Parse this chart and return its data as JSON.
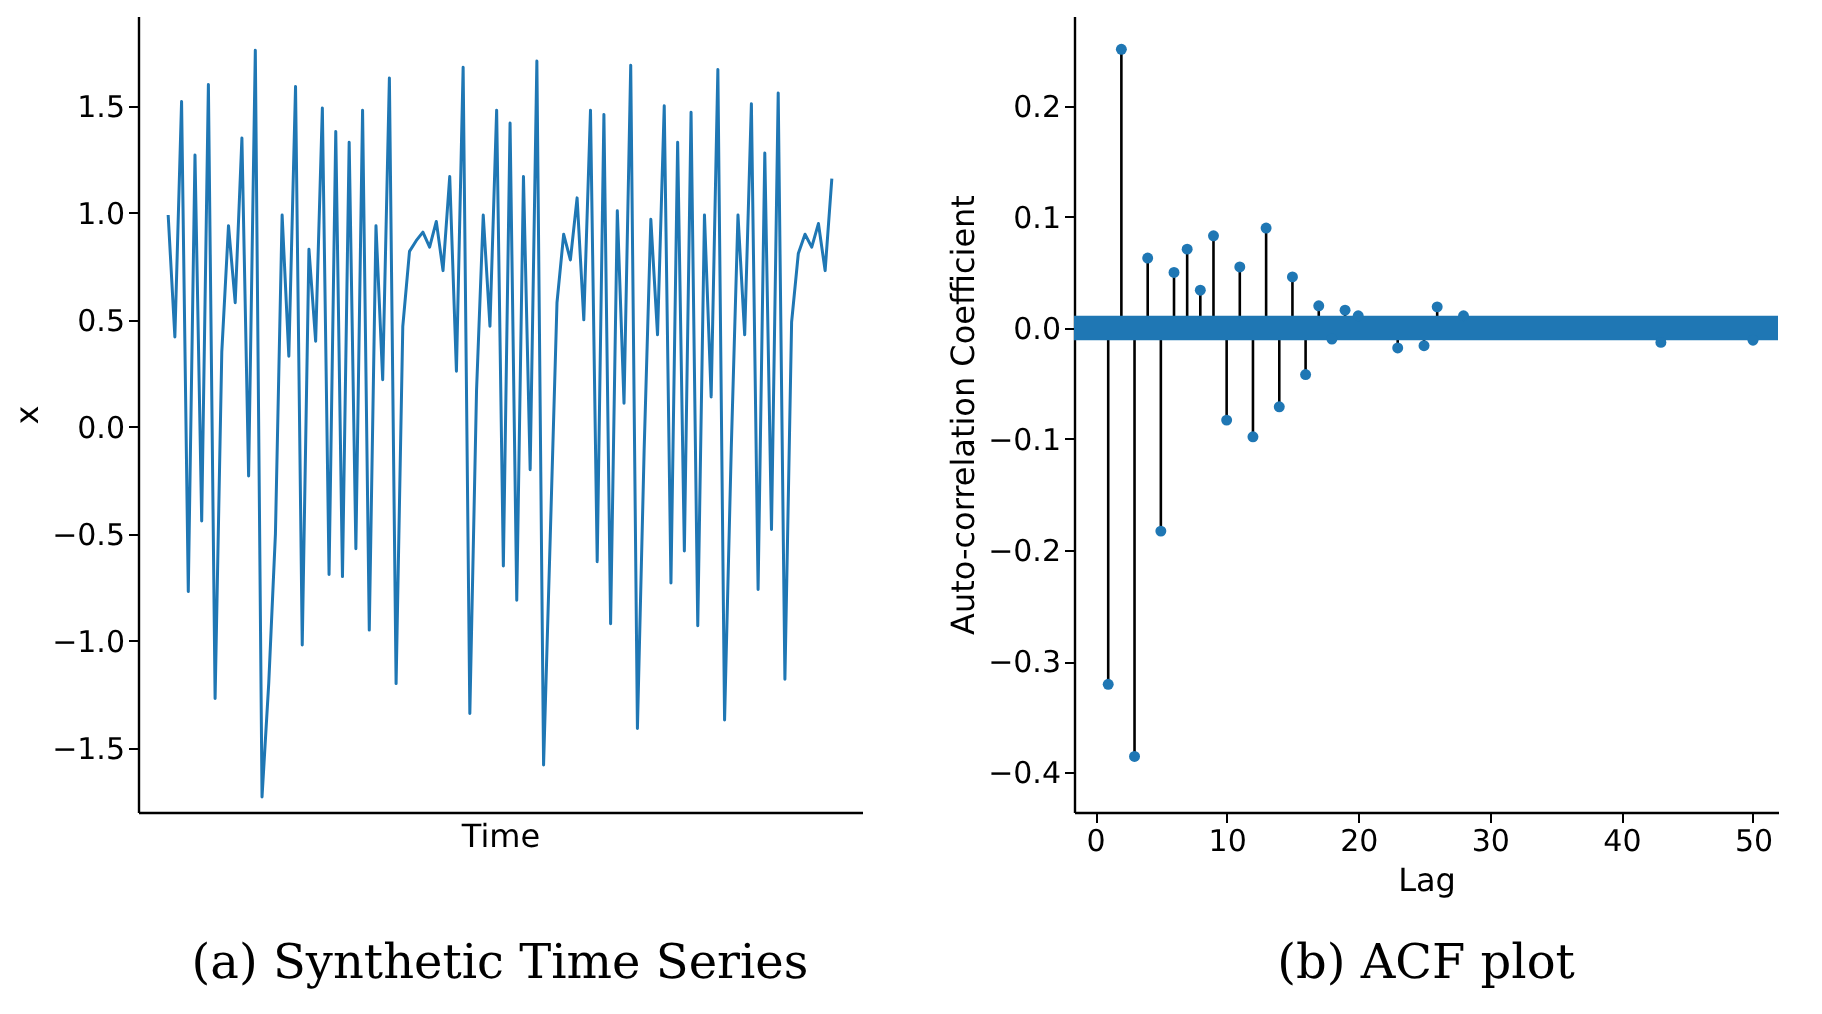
{
  "chart_data": [
    {
      "type": "line",
      "title": "(a) Synthetic Time Series",
      "xlabel": "Time",
      "ylabel": "x",
      "categories": [
        null,
        null,
        null,
        null,
        null,
        null,
        null,
        null,
        null,
        null,
        null,
        null,
        null,
        null,
        null,
        null,
        null,
        null,
        null,
        null,
        null,
        null,
        null,
        null,
        null,
        null,
        null,
        null,
        null,
        null,
        null,
        null,
        null,
        null,
        null,
        null,
        null,
        null,
        null,
        null,
        null,
        null,
        null,
        null,
        null,
        null,
        null,
        null,
        null,
        null,
        null,
        null,
        null,
        null,
        null,
        null,
        null,
        null,
        null,
        null,
        null,
        null,
        null,
        null,
        null,
        null,
        null,
        null,
        null,
        null,
        null,
        null,
        null,
        null,
        null,
        null,
        null,
        null,
        null,
        null,
        null,
        null,
        null,
        null,
        null,
        null,
        null,
        null,
        null,
        null,
        null,
        null,
        null,
        null,
        null,
        null,
        null,
        null,
        null,
        null
      ],
      "series": [
        {
          "color": "#1f77b4",
          "values": [
            0.99,
            0.42,
            1.52,
            -0.77,
            1.27,
            -0.44,
            1.6,
            -1.27,
            0.35,
            0.94,
            0.58,
            1.35,
            -0.23,
            1.76,
            -1.73,
            -1.2,
            -0.5,
            0.99,
            0.33,
            1.59,
            -1.02,
            0.83,
            0.4,
            1.49,
            -0.69,
            1.38,
            -0.7,
            1.33,
            -0.57,
            1.48,
            -0.95,
            0.94,
            0.22,
            1.63,
            -1.2,
            0.47,
            0.82,
            0.87,
            0.91,
            0.84,
            0.96,
            0.73,
            1.17,
            0.26,
            1.68,
            -1.34,
            0.17,
            0.99,
            0.47,
            1.48,
            -0.65,
            1.42,
            -0.81,
            1.17,
            -0.2,
            1.71,
            -1.58,
            -0.51,
            0.58,
            0.9,
            0.78,
            1.07,
            0.5,
            1.48,
            -0.63,
            1.46,
            -0.92,
            1.01,
            0.11,
            1.69,
            -1.41,
            -0.11,
            0.97,
            0.43,
            1.5,
            -0.73,
            1.33,
            -0.58,
            1.47,
            -0.93,
            0.99,
            0.14,
            1.67,
            -1.37,
            -0.1,
            0.99,
            0.43,
            1.51,
            -0.76,
            1.28,
            -0.48,
            1.56,
            -1.18,
            0.49,
            0.81,
            0.9,
            0.84,
            0.95,
            0.73,
            1.16
          ]
        }
      ],
      "ylim": [
        -1.8,
        1.92
      ],
      "yticks": [
        {
          "value": -1.5,
          "label": "−1.5"
        },
        {
          "value": -1.0,
          "label": "−1.0"
        },
        {
          "value": -0.5,
          "label": "−0.5"
        },
        {
          "value": 0,
          "label": "0.0"
        },
        0.5,
        {
          "value": 1.0,
          "label": "1.0"
        },
        1.5
      ],
      "tick_labels": "y",
      "grid": false
    },
    {
      "type": "lollipop",
      "title": "(b) ACF plot",
      "xlabel": "Lag",
      "ylabel": "Auto-correlation Coefficient",
      "series": [
        {
          "type": "lollipop",
          "color": "#1f77b4",
          "x": [
            1,
            2,
            3,
            4,
            5,
            6,
            7,
            8,
            9,
            10,
            11,
            12,
            13,
            14,
            15,
            16,
            17,
            18,
            19,
            20,
            21,
            22,
            23,
            24,
            25,
            26,
            27,
            28,
            29,
            30,
            31,
            32,
            33,
            34,
            35,
            36,
            37,
            38,
            39,
            40,
            41,
            42,
            43,
            44,
            45,
            46,
            47,
            48,
            49,
            50
          ],
          "values": [
            -0.321,
            0.251,
            -0.386,
            0.063,
            -0.183,
            0.05,
            0.071,
            0.034,
            0.083,
            -0.083,
            0.055,
            -0.098,
            0.09,
            -0.071,
            0.046,
            -0.042,
            0.02,
            -0.01,
            0.016,
            0.011,
            null,
            null,
            -0.018,
            null,
            -0.016,
            0.019,
            null,
            0.011,
            null,
            null,
            null,
            null,
            null,
            null,
            null,
            null,
            null,
            null,
            null,
            null,
            null,
            null,
            -0.013,
            null,
            null,
            null,
            null,
            null,
            null,
            -0.011
          ]
        }
      ],
      "bands": [
        {
          "axis": "y",
          "from": -0.011,
          "to": 0.011,
          "color": "#1f77b4"
        }
      ],
      "xlim": [
        -1.6,
        51.9
      ],
      "xticks": [
        0,
        10,
        20,
        30,
        40,
        50
      ],
      "ylim": [
        -0.436,
        0.281
      ],
      "yticks": [
        {
          "value": -0.4,
          "label": "−0.4"
        },
        {
          "value": -0.3,
          "label": "−0.3"
        },
        {
          "value": -0.2,
          "label": "−0.2"
        },
        {
          "value": -0.1,
          "label": "−0.1"
        },
        {
          "value": 0,
          "label": "0.0"
        },
        0.1,
        0.2
      ],
      "marker": "circle",
      "grid": false
    }
  ]
}
